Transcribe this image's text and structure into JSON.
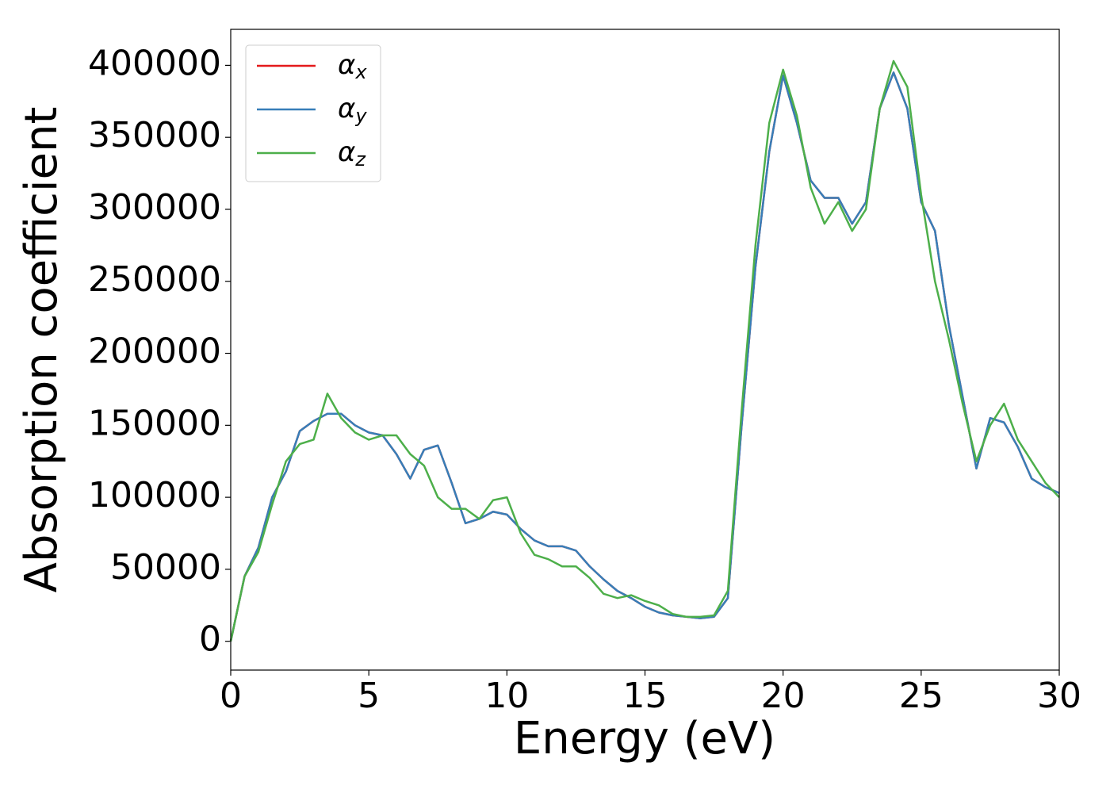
{
  "chart_data": {
    "type": "line",
    "xlabel": "Energy (eV)",
    "ylabel": "Absorption coefficient",
    "x": [
      0,
      0.5,
      1,
      1.5,
      2,
      2.5,
      3,
      3.5,
      4,
      4.5,
      5,
      5.5,
      6,
      6.5,
      7,
      7.5,
      8,
      8.5,
      9,
      9.5,
      10,
      10.5,
      11,
      11.5,
      12,
      12.5,
      13,
      13.5,
      14,
      14.5,
      15,
      15.5,
      16,
      16.5,
      17,
      17.5,
      18,
      18.5,
      19,
      19.5,
      20,
      20.5,
      21,
      21.5,
      22,
      22.5,
      23,
      23.5,
      24,
      24.5,
      25,
      25.5,
      26,
      26.5,
      27,
      27.5,
      28,
      28.5,
      29,
      29.5,
      30
    ],
    "series": [
      {
        "name": "αx",
        "color": "#e41a1c",
        "values": [
          0,
          45000,
          65000,
          100000,
          118000,
          146000,
          153000,
          158000,
          158000,
          150000,
          145000,
          143000,
          130000,
          113000,
          133000,
          136000,
          110000,
          82000,
          85000,
          90000,
          88000,
          78000,
          70000,
          66000,
          66000,
          63000,
          52000,
          43000,
          35000,
          30000,
          24000,
          20000,
          18000,
          17000,
          16000,
          17000,
          30000,
          150000,
          260000,
          340000,
          393000,
          360000,
          320000,
          308000,
          308000,
          290000,
          305000,
          370000,
          395000,
          370000,
          305000,
          285000,
          220000,
          170000,
          120000,
          155000,
          152000,
          135000,
          113000,
          107000,
          103000
        ]
      },
      {
        "name": "αy",
        "color": "#377eb8",
        "values": [
          0,
          45000,
          65000,
          100000,
          118000,
          146000,
          153000,
          158000,
          158000,
          150000,
          145000,
          143000,
          130000,
          113000,
          133000,
          136000,
          110000,
          82000,
          85000,
          90000,
          88000,
          78000,
          70000,
          66000,
          66000,
          63000,
          52000,
          43000,
          35000,
          30000,
          24000,
          20000,
          18000,
          17000,
          16000,
          17000,
          30000,
          150000,
          260000,
          340000,
          393000,
          360000,
          320000,
          308000,
          308000,
          290000,
          305000,
          370000,
          395000,
          370000,
          305000,
          285000,
          220000,
          170000,
          120000,
          155000,
          152000,
          135000,
          113000,
          107000,
          103000
        ]
      },
      {
        "name": "αz",
        "color": "#4daf4a",
        "values": [
          0,
          45000,
          62000,
          95000,
          125000,
          137000,
          140000,
          172000,
          155000,
          145000,
          140000,
          143000,
          143000,
          130000,
          122000,
          100000,
          92000,
          92000,
          85000,
          98000,
          100000,
          75000,
          60000,
          57000,
          52000,
          52000,
          44000,
          33000,
          30000,
          32000,
          28000,
          25000,
          19000,
          17000,
          17000,
          18000,
          35000,
          160000,
          275000,
          360000,
          397000,
          365000,
          315000,
          290000,
          305000,
          285000,
          300000,
          370000,
          403000,
          385000,
          310000,
          250000,
          210000,
          165000,
          125000,
          150000,
          165000,
          140000,
          125000,
          110000,
          100000
        ]
      }
    ],
    "xlim": [
      0,
      30
    ],
    "ylim": [
      -20000,
      425000
    ],
    "xticks": [
      0,
      5,
      10,
      15,
      20,
      25,
      30
    ],
    "yticks": [
      0,
      50000,
      100000,
      150000,
      200000,
      250000,
      300000,
      350000,
      400000
    ],
    "legend": "upper left"
  }
}
